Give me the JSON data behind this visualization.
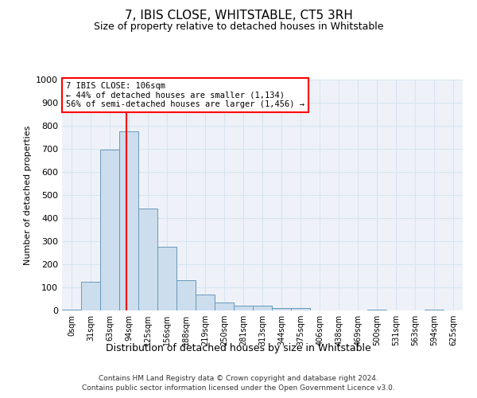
{
  "title1": "7, IBIS CLOSE, WHITSTABLE, CT5 3RH",
  "title2": "Size of property relative to detached houses in Whitstable",
  "xlabel": "Distribution of detached houses by size in Whitstable",
  "ylabel": "Number of detached properties",
  "bar_labels": [
    "0sqm",
    "31sqm",
    "63sqm",
    "94sqm",
    "125sqm",
    "156sqm",
    "188sqm",
    "219sqm",
    "250sqm",
    "281sqm",
    "313sqm",
    "344sqm",
    "375sqm",
    "406sqm",
    "438sqm",
    "469sqm",
    "500sqm",
    "531sqm",
    "563sqm",
    "594sqm",
    "625sqm"
  ],
  "bar_values": [
    5,
    125,
    695,
    775,
    440,
    275,
    130,
    70,
    35,
    20,
    20,
    10,
    10,
    0,
    0,
    0,
    5,
    0,
    0,
    5,
    0
  ],
  "bar_color": "#ccdded",
  "bar_edge_color": "#6699bb",
  "grid_color": "#d8e4f0",
  "background_color": "#eef2f8",
  "annotation_text": "7 IBIS CLOSE: 106sqm\n← 44% of detached houses are smaller (1,134)\n56% of semi-detached houses are larger (1,456) →",
  "property_size": 106,
  "ylim": [
    0,
    1000
  ],
  "yticks": [
    0,
    100,
    200,
    300,
    400,
    500,
    600,
    700,
    800,
    900,
    1000
  ],
  "bin_edges": [
    0,
    31,
    63,
    94,
    125,
    156,
    188,
    219,
    250,
    281,
    313,
    344,
    375,
    406,
    438,
    469,
    500,
    531,
    563,
    594,
    625,
    656
  ],
  "footer1": "Contains HM Land Registry data © Crown copyright and database right 2024.",
  "footer2": "Contains public sector information licensed under the Open Government Licence v3.0."
}
